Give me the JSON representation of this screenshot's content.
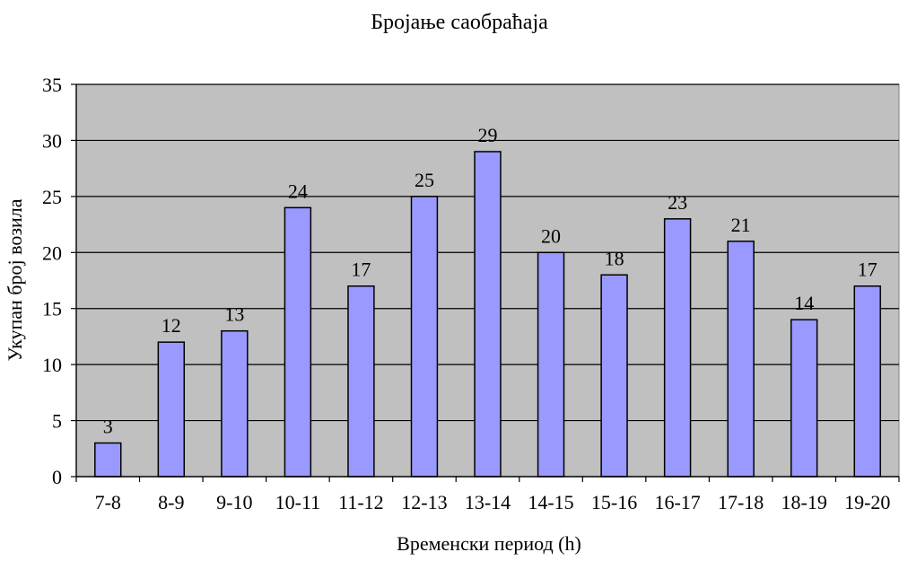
{
  "chart_data": {
    "type": "bar",
    "title": "Бројање саобраћаја",
    "xlabel": "Временски период (h)",
    "ylabel": "Укупан број возила",
    "categories": [
      "7-8",
      "8-9",
      "9-10",
      "10-11",
      "11-12",
      "12-13",
      "13-14",
      "14-15",
      "15-16",
      "16-17",
      "17-18",
      "18-19",
      "19-20"
    ],
    "values": [
      3,
      12,
      13,
      24,
      17,
      25,
      29,
      20,
      18,
      23,
      21,
      14,
      17
    ],
    "ylim": [
      0,
      35
    ],
    "yticks": [
      0,
      5,
      10,
      15,
      20,
      25,
      30,
      35
    ],
    "grid": true,
    "legend": "none",
    "data_labels": true,
    "colors": {
      "bar_fill": "#9999ff",
      "bar_stroke": "#000000",
      "plot_background": "#c0c0c0",
      "gridline": "#000000"
    }
  }
}
